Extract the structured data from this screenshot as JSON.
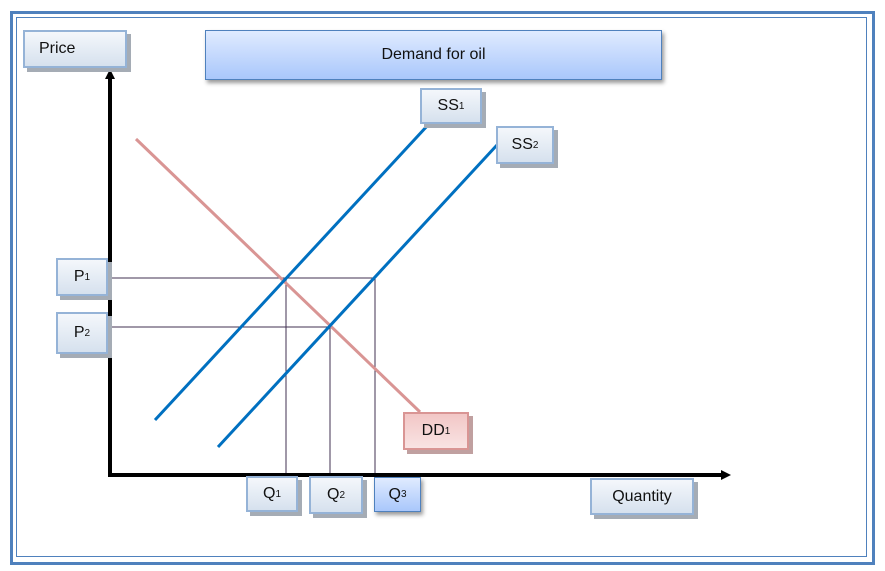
{
  "title": "Demand for oil",
  "y_axis_label": "Price",
  "x_axis_label": "Quantity",
  "curves": {
    "ss1": {
      "base": "SS",
      "sub": "1"
    },
    "ss2": {
      "base": "SS",
      "sub": "2"
    },
    "dd1": {
      "base": "DD",
      "sub": "1"
    }
  },
  "price_levels": [
    {
      "base": "P",
      "sub": "1"
    },
    {
      "base": "P",
      "sub": "2"
    }
  ],
  "quantity_levels": [
    {
      "base": "Q",
      "sub": "1"
    },
    {
      "base": "Q",
      "sub": "2"
    },
    {
      "base": "Q",
      "sub": "3"
    }
  ],
  "colors": {
    "supply": "#0070c0",
    "demand": "#d99594",
    "frame": "#4f81bd",
    "guide": "#403152"
  }
}
